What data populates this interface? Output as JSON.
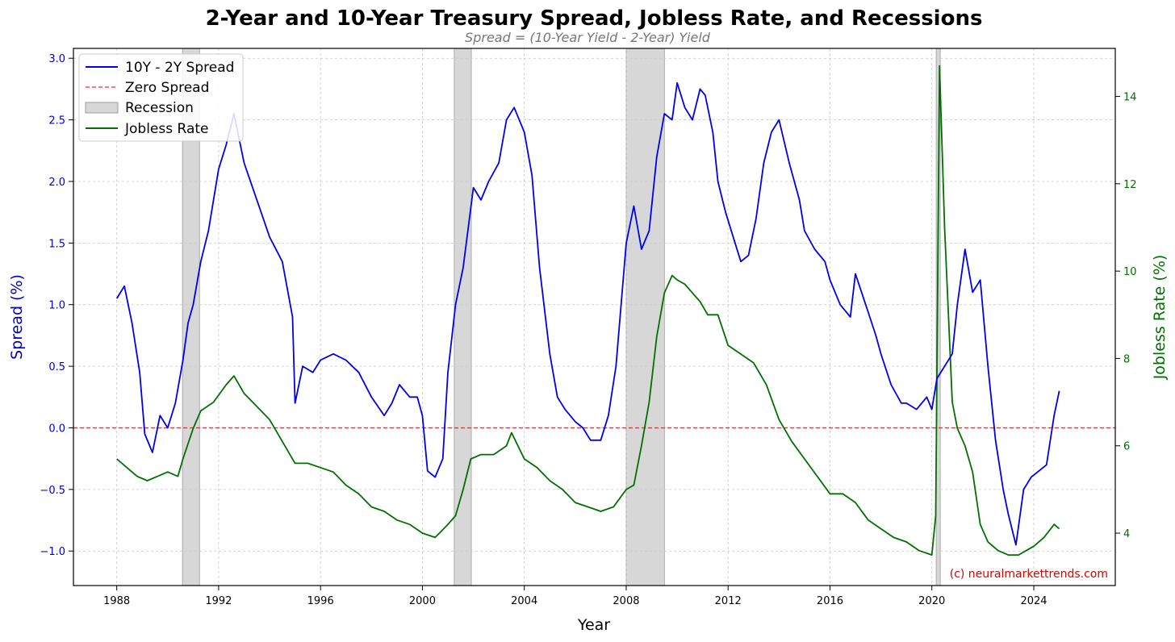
{
  "chart_data": {
    "type": "line",
    "title": "2-Year and 10-Year Treasury Spread, Jobless Rate, and Recessions",
    "subtitle": "Spread = (10-Year Yield - 2-Year) Yield",
    "xlabel": "Year",
    "ylabel_left": "Spread (%)",
    "ylabel_right": "Jobless Rate (%)",
    "xlim": [
      1986.3,
      2027.2
    ],
    "ylim_left": [
      -1.28,
      3.08
    ],
    "ylim_right": [
      2.8,
      15.1
    ],
    "x_ticks": [
      1988,
      1992,
      1996,
      2000,
      2004,
      2008,
      2012,
      2016,
      2020,
      2024
    ],
    "y_ticks_left": [
      -1.0,
      -0.5,
      0.0,
      0.5,
      1.0,
      1.5,
      2.0,
      2.5,
      3.0
    ],
    "y_ticks_right": [
      4,
      6,
      8,
      10,
      12,
      14
    ],
    "grid": true,
    "legend_position": "top-left",
    "watermark": "(c) neuralmarkettrends.com",
    "colors": {
      "spread": "#0000ee",
      "zero": "#e03030",
      "recession": "#bdbdbd",
      "jobless": "#007000",
      "left_axis": "#0000cc",
      "right_axis": "#007000",
      "watermark": "#dd0000"
    },
    "legend": [
      {
        "key": "spread",
        "label": "10Y - 2Y Spread"
      },
      {
        "key": "zero",
        "label": "Zero Spread"
      },
      {
        "key": "recession",
        "label": "Recession"
      },
      {
        "key": "jobless",
        "label": "Jobless Rate"
      }
    ],
    "zero_line": 0,
    "recessions": [
      [
        1990.58,
        1991.25
      ],
      [
        2001.25,
        2001.92
      ],
      [
        2008.0,
        2009.5
      ],
      [
        2020.17,
        2020.33
      ]
    ],
    "series": [
      {
        "name": "10Y - 2Y Spread",
        "axis": "left",
        "x": [
          1988.0,
          1988.3,
          1988.6,
          1988.9,
          1989.1,
          1989.4,
          1989.7,
          1990.0,
          1990.3,
          1990.6,
          1990.8,
          1991.0,
          1991.3,
          1991.6,
          1992.0,
          1992.3,
          1992.6,
          1993.0,
          1993.5,
          1994.0,
          1994.5,
          1994.9,
          1995.0,
          1995.3,
          1995.7,
          1996.0,
          1996.5,
          1997.0,
          1997.5,
          1998.0,
          1998.5,
          1998.8,
          1999.1,
          1999.5,
          1999.8,
          2000.0,
          2000.2,
          2000.5,
          2000.8,
          2001.0,
          2001.3,
          2001.6,
          2002.0,
          2002.3,
          2002.6,
          2003.0,
          2003.3,
          2003.6,
          2004.0,
          2004.3,
          2004.6,
          2005.0,
          2005.3,
          2005.6,
          2006.0,
          2006.3,
          2006.6,
          2007.0,
          2007.3,
          2007.6,
          2008.0,
          2008.3,
          2008.6,
          2008.9,
          2009.2,
          2009.5,
          2009.8,
          2010.0,
          2010.3,
          2010.6,
          2010.9,
          2011.1,
          2011.4,
          2011.6,
          2011.9,
          2012.2,
          2012.5,
          2012.8,
          2013.1,
          2013.4,
          2013.7,
          2014.0,
          2014.4,
          2014.8,
          2015.0,
          2015.4,
          2015.8,
          2016.0,
          2016.4,
          2016.8,
          2017.0,
          2017.4,
          2017.8,
          2018.0,
          2018.4,
          2018.8,
          2019.0,
          2019.4,
          2019.8,
          2020.0,
          2020.2,
          2020.5,
          2020.8,
          2021.0,
          2021.3,
          2021.6,
          2021.9,
          2022.2,
          2022.5,
          2022.8,
          2023.0,
          2023.3,
          2023.6,
          2023.9,
          2024.2,
          2024.5,
          2024.8,
          2025.0
        ],
        "values": [
          1.05,
          1.15,
          0.85,
          0.45,
          -0.05,
          -0.2,
          0.1,
          0.0,
          0.2,
          0.55,
          0.85,
          1.0,
          1.35,
          1.6,
          2.1,
          2.3,
          2.55,
          2.15,
          1.85,
          1.55,
          1.35,
          0.9,
          0.2,
          0.5,
          0.45,
          0.55,
          0.6,
          0.55,
          0.45,
          0.25,
          0.1,
          0.2,
          0.35,
          0.25,
          0.25,
          0.1,
          -0.35,
          -0.4,
          -0.25,
          0.45,
          1.0,
          1.3,
          1.95,
          1.85,
          2.0,
          2.15,
          2.5,
          2.6,
          2.4,
          2.05,
          1.3,
          0.6,
          0.25,
          0.15,
          0.05,
          0.0,
          -0.1,
          -0.1,
          0.1,
          0.5,
          1.5,
          1.8,
          1.45,
          1.6,
          2.2,
          2.55,
          2.5,
          2.8,
          2.6,
          2.5,
          2.75,
          2.7,
          2.4,
          2.0,
          1.75,
          1.55,
          1.35,
          1.4,
          1.7,
          2.15,
          2.4,
          2.5,
          2.15,
          1.85,
          1.6,
          1.45,
          1.35,
          1.2,
          1.0,
          0.9,
          1.25,
          1.0,
          0.75,
          0.6,
          0.35,
          0.2,
          0.2,
          0.15,
          0.25,
          0.15,
          0.4,
          0.5,
          0.6,
          1.0,
          1.45,
          1.1,
          1.2,
          0.5,
          -0.1,
          -0.5,
          -0.7,
          -0.95,
          -0.5,
          -0.4,
          -0.35,
          -0.3,
          0.1,
          0.3
        ]
      },
      {
        "name": "Jobless Rate",
        "axis": "right",
        "x": [
          1988.0,
          1988.4,
          1988.8,
          1989.2,
          1989.6,
          1990.0,
          1990.4,
          1990.6,
          1991.0,
          1991.3,
          1991.8,
          1992.3,
          1992.6,
          1993.0,
          1993.5,
          1994.0,
          1994.5,
          1995.0,
          1995.5,
          1996.0,
          1996.5,
          1997.0,
          1997.5,
          1998.0,
          1998.5,
          1999.0,
          1999.5,
          2000.0,
          2000.5,
          2001.0,
          2001.3,
          2001.6,
          2001.9,
          2002.3,
          2002.8,
          2003.3,
          2003.5,
          2004.0,
          2004.5,
          2005.0,
          2005.5,
          2006.0,
          2006.5,
          2007.0,
          2007.5,
          2008.0,
          2008.3,
          2008.6,
          2008.9,
          2009.2,
          2009.5,
          2009.8,
          2010.0,
          2010.3,
          2010.6,
          2010.9,
          2011.2,
          2011.6,
          2012.0,
          2012.5,
          2013.0,
          2013.5,
          2014.0,
          2014.5,
          2015.0,
          2015.5,
          2016.0,
          2016.5,
          2017.0,
          2017.5,
          2018.0,
          2018.5,
          2019.0,
          2019.5,
          2020.0,
          2020.15,
          2020.3,
          2020.5,
          2020.8,
          2021.0,
          2021.3,
          2021.6,
          2021.9,
          2022.2,
          2022.6,
          2023.0,
          2023.4,
          2023.7,
          2024.0,
          2024.4,
          2024.8,
          2025.0
        ],
        "values": [
          5.7,
          5.5,
          5.3,
          5.2,
          5.3,
          5.4,
          5.3,
          5.7,
          6.4,
          6.8,
          7.0,
          7.4,
          7.6,
          7.2,
          6.9,
          6.6,
          6.1,
          5.6,
          5.6,
          5.5,
          5.4,
          5.1,
          4.9,
          4.6,
          4.5,
          4.3,
          4.2,
          4.0,
          3.9,
          4.2,
          4.4,
          5.0,
          5.7,
          5.8,
          5.8,
          6.0,
          6.3,
          5.7,
          5.5,
          5.2,
          5.0,
          4.7,
          4.6,
          4.5,
          4.6,
          5.0,
          5.1,
          6.0,
          7.0,
          8.5,
          9.5,
          9.9,
          9.8,
          9.7,
          9.5,
          9.3,
          9.0,
          9.0,
          8.3,
          8.1,
          7.9,
          7.4,
          6.6,
          6.1,
          5.7,
          5.3,
          4.9,
          4.9,
          4.7,
          4.3,
          4.1,
          3.9,
          3.8,
          3.6,
          3.5,
          4.4,
          14.7,
          11.0,
          7.0,
          6.4,
          6.0,
          5.4,
          4.2,
          3.8,
          3.6,
          3.5,
          3.5,
          3.6,
          3.7,
          3.9,
          4.2,
          4.1
        ]
      }
    ]
  }
}
